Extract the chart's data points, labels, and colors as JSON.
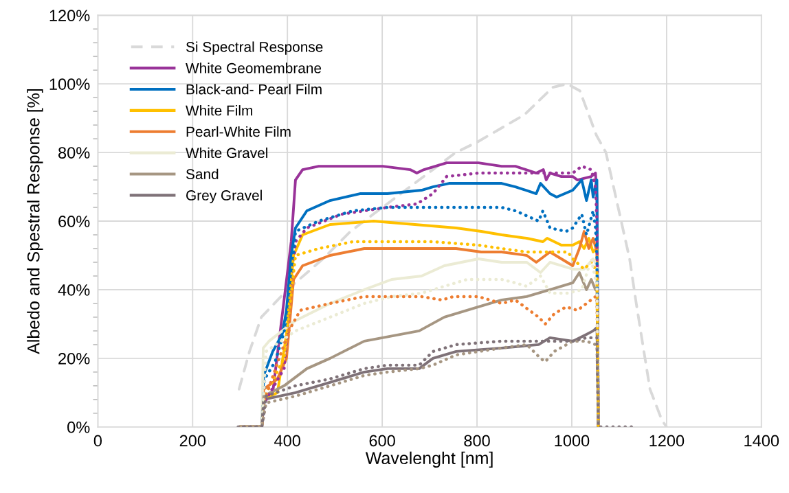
{
  "chart_data": {
    "type": "line",
    "xlabel": "Wavelenght [nm]",
    "ylabel": "Albedo and Spestral Response [%]",
    "xlim": [
      0,
      1400
    ],
    "xticks": [
      0,
      200,
      400,
      600,
      800,
      1000,
      1200,
      1400
    ],
    "ylim": [
      0,
      120
    ],
    "yticks": [
      {
        "value": 0,
        "label": "0%"
      },
      {
        "value": 20,
        "label": "20%"
      },
      {
        "value": 40,
        "label": "40%"
      },
      {
        "value": 60,
        "label": "60%"
      },
      {
        "value": 80,
        "label": "80%"
      },
      {
        "value": 100,
        "label": "100%"
      },
      {
        "value": 120,
        "label": "120%"
      }
    ],
    "grid": true,
    "legend": "top left",
    "marker": "none",
    "series": [
      {
        "name": "Si Spectral Response",
        "color": "#d9d9d9",
        "line_style": "dashed",
        "x": [
          298,
          320,
          345,
          400,
          475,
          533,
          581,
          620,
          755,
          800,
          900,
          960,
          990,
          1017,
          1052,
          1072,
          1101,
          1122,
          1136,
          1151,
          1165,
          1190,
          1200
        ],
        "values": [
          11,
          22,
          32,
          40,
          49,
          57,
          62,
          66,
          80,
          83,
          91,
          99,
          100,
          98,
          85,
          80,
          62,
          49,
          36,
          23,
          11,
          2,
          0
        ]
      },
      {
        "name": "White Geomembrane",
        "color": "#993399",
        "line_style": "solid",
        "x": [
          300,
          346,
          350,
          369,
          408,
          417,
          432,
          466,
          524,
          601,
          659,
          673,
          688,
          736,
          803,
          852,
          881,
          925,
          940,
          946,
          954,
          978,
          1002,
          1012,
          1041,
          1050,
          1053,
          1056
        ],
        "values": [
          0,
          0,
          8,
          10,
          54,
          72,
          75,
          76,
          76,
          76,
          75,
          74,
          75,
          77,
          77,
          76,
          76,
          74,
          75,
          72,
          74,
          73,
          73,
          72,
          73,
          74,
          67,
          0
        ]
      },
      {
        "name": "Black-and- Pearl Film",
        "color": "#0070c0",
        "line_style": "solid",
        "x": [
          300,
          346,
          350,
          369,
          389,
          398,
          408,
          417,
          441,
          490,
          553,
          611,
          683,
          707,
          741,
          803,
          852,
          881,
          925,
          934,
          954,
          968,
          1002,
          1021,
          1031,
          1041,
          1045,
          1053,
          1056
        ],
        "values": [
          0,
          0,
          15,
          22,
          27,
          34,
          50,
          58,
          63,
          66,
          68,
          68,
          69,
          70,
          71,
          71,
          71,
          70,
          68,
          71,
          68,
          67,
          69,
          72,
          66,
          72,
          67,
          72,
          0
        ]
      },
      {
        "name": "White Film",
        "color": "#ffc000",
        "line_style": "solid",
        "x": [
          300,
          346,
          350,
          379,
          398,
          413,
          432,
          490,
          582,
          669,
          756,
          809,
          852,
          905,
          939,
          948,
          978,
          1002,
          1016,
          1026,
          1036,
          1045,
          1053,
          1056
        ],
        "values": [
          0,
          0,
          8,
          10,
          27,
          50,
          56,
          59,
          60,
          59,
          58,
          57,
          56,
          55,
          54,
          55,
          53,
          53,
          54,
          52,
          55,
          51,
          52,
          0
        ]
      },
      {
        "name": "Pearl-White Film",
        "color": "#ed7d31",
        "line_style": "solid",
        "x": [
          300,
          346,
          350,
          379,
          398,
          413,
          432,
          490,
          562,
          601,
          683,
          756,
          809,
          852,
          905,
          925,
          954,
          1002,
          1016,
          1026,
          1036,
          1045,
          1053,
          1056
        ],
        "values": [
          0,
          0,
          11,
          14,
          20,
          43,
          47,
          50,
          52,
          52,
          52,
          52,
          51,
          51,
          50,
          48,
          51,
          47,
          52,
          57,
          52,
          55,
          51,
          0
        ]
      },
      {
        "name": "White Gravel",
        "color": "#ebebd4",
        "line_style": "solid",
        "x": [
          300,
          346,
          349,
          361,
          389,
          417,
          490,
          562,
          620,
          683,
          731,
          803,
          852,
          905,
          934,
          954,
          1002,
          1026,
          1045,
          1053,
          1056
        ],
        "values": [
          0,
          0,
          23,
          25,
          28,
          31,
          36,
          40,
          43,
          44,
          47,
          49,
          48,
          48,
          45,
          48,
          46,
          46,
          49,
          47,
          0
        ]
      },
      {
        "name": "Sand",
        "color": "#a69682",
        "line_style": "solid",
        "x": [
          300,
          346,
          350,
          393,
          441,
          490,
          562,
          678,
          731,
          803,
          852,
          905,
          954,
          1002,
          1016,
          1031,
          1041,
          1050,
          1053,
          1056
        ],
        "values": [
          0,
          0,
          9,
          12,
          17,
          20,
          25,
          28,
          32,
          35,
          37,
          38,
          40,
          42,
          45,
          40,
          43,
          40,
          40,
          0
        ]
      },
      {
        "name": "Grey Gravel",
        "color": "#7f7278",
        "line_style": "solid",
        "x": [
          300,
          346,
          350,
          417,
          490,
          562,
          611,
          678,
          707,
          756,
          852,
          930,
          954,
          1002,
          1031,
          1045,
          1053,
          1056
        ],
        "values": [
          0,
          0,
          8,
          10,
          13,
          16,
          17,
          17,
          20,
          22,
          23,
          24,
          26,
          25,
          27,
          28,
          29,
          0
        ]
      },
      {
        "color": "#993399",
        "line_style": "dotted",
        "x": [
          300,
          346,
          355,
          393,
          417,
          441,
          514,
          611,
          673,
          707,
          736,
          803,
          857,
          905,
          1002,
          1021,
          1041,
          1050,
          1053,
          1056
        ],
        "values": [
          0,
          0,
          8,
          17,
          54,
          58,
          62,
          64,
          65,
          68,
          73,
          74,
          74,
          74,
          74,
          76,
          75,
          70,
          60,
          0
        ]
      },
      {
        "color": "#0070c0",
        "line_style": "dotted",
        "x": [
          300,
          346,
          352,
          374,
          398,
          417,
          466,
          538,
          611,
          683,
          731,
          803,
          852,
          881,
          930,
          939,
          954,
          988,
          1002,
          1021,
          1031,
          1045,
          1050,
          1053,
          1056
        ],
        "values": [
          0,
          0,
          14,
          19,
          30,
          57,
          60,
          63,
          64,
          64,
          64,
          64,
          64,
          63,
          60,
          63,
          58,
          57,
          58,
          62,
          56,
          63,
          58,
          50,
          0
        ]
      },
      {
        "color": "#ffc000",
        "line_style": "dotted",
        "x": [
          300,
          346,
          352,
          393,
          417,
          466,
          538,
          611,
          707,
          803,
          852,
          905,
          954,
          992,
          1002,
          1026,
          1041,
          1050,
          1053,
          1056
        ],
        "values": [
          0,
          0,
          9,
          20,
          50,
          52,
          54,
          54,
          54,
          53,
          52,
          51,
          51,
          51,
          49,
          46,
          48,
          46,
          45,
          0
        ]
      },
      {
        "color": "#ed7d31",
        "line_style": "dotted",
        "x": [
          300,
          346,
          352,
          403,
          427,
          490,
          562,
          620,
          683,
          726,
          750,
          803,
          852,
          881,
          930,
          944,
          963,
          988,
          1012,
          1031,
          1050,
          1053,
          1056
        ],
        "values": [
          0,
          0,
          8,
          28,
          34,
          36,
          38,
          38,
          38,
          37,
          38,
          38,
          36,
          37,
          32,
          30,
          33,
          35,
          34,
          36,
          38,
          38,
          0
        ]
      },
      {
        "color": "#ebebd4",
        "line_style": "dotted",
        "x": [
          300,
          346,
          355,
          417,
          490,
          562,
          620,
          683,
          731,
          779,
          852,
          881,
          905,
          934,
          954,
          992,
          1021,
          1041,
          1050,
          1053,
          1056
        ],
        "values": [
          0,
          0,
          22,
          28,
          32,
          36,
          38,
          39,
          41,
          43,
          43,
          42,
          41,
          44,
          39,
          39,
          40,
          49,
          43,
          43,
          0
        ]
      },
      {
        "color": "#a69682",
        "line_style": "dotted",
        "x": [
          300,
          346,
          355,
          417,
          490,
          562,
          611,
          678,
          707,
          756,
          852,
          905,
          934,
          944,
          963,
          1002,
          1031,
          1050,
          1053,
          1056
        ],
        "values": [
          0,
          0,
          7,
          9,
          12,
          15,
          16,
          17,
          18,
          21,
          23,
          24,
          20,
          19,
          22,
          25,
          25,
          24,
          24,
          0
        ]
      },
      {
        "color": "#7f7278",
        "line_style": "dotted",
        "x": [
          296,
          346,
          355,
          417,
          490,
          562,
          611,
          678,
          707,
          756,
          852,
          905,
          954,
          1002,
          1031,
          1050,
          1053,
          1056,
          1135
        ],
        "values": [
          0,
          0,
          9,
          12,
          14,
          17,
          18,
          18,
          22,
          24,
          25,
          25,
          25,
          25,
          26,
          26,
          26,
          0,
          0
        ]
      }
    ]
  }
}
